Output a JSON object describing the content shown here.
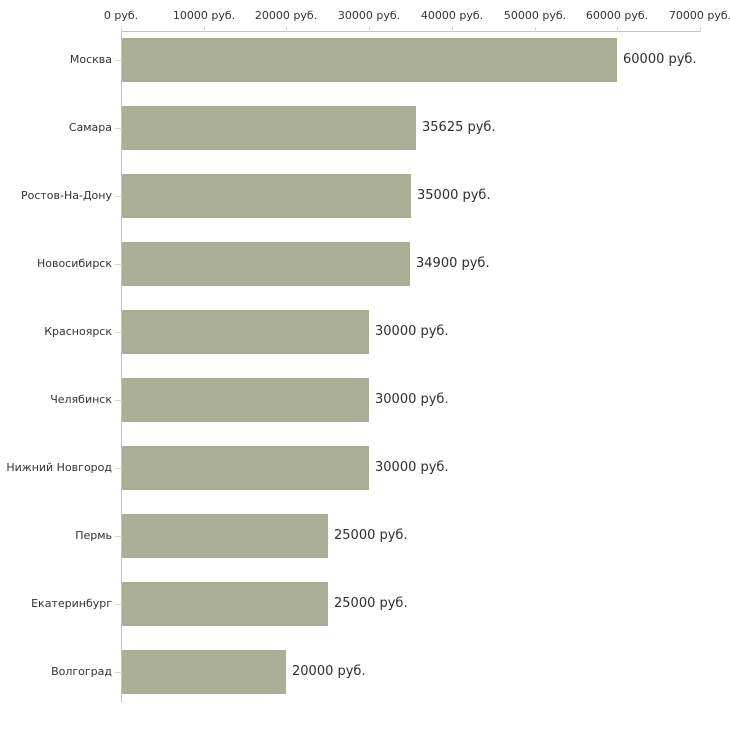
{
  "chart_data": {
    "type": "bar",
    "orientation": "horizontal",
    "unit": "руб.",
    "categories": [
      "Москва",
      "Самара",
      "Ростов-На-Дону",
      "Новосибирск",
      "Красноярск",
      "Челябинск",
      "Нижний Новгород",
      "Пермь",
      "Екатеринбург",
      "Волгоград"
    ],
    "values": [
      60000,
      35625,
      35000,
      34900,
      30000,
      30000,
      30000,
      25000,
      25000,
      20000
    ],
    "value_labels": [
      "60000 руб.",
      "35625 руб.",
      "35000 руб.",
      "34900 руб.",
      "30000 руб.",
      "30000 руб.",
      "30000 руб.",
      "25000 руб.",
      "25000 руб.",
      "20000 руб."
    ],
    "x_axis": {
      "position": "top",
      "min": 0,
      "max": 70000,
      "ticks": [
        0,
        10000,
        20000,
        30000,
        40000,
        50000,
        60000,
        70000
      ],
      "tick_labels": [
        "0 руб.",
        "10000 руб.",
        "20000 руб.",
        "30000 руб.",
        "40000 руб.",
        "50000 руб.",
        "60000 руб.",
        "70000 руб."
      ]
    },
    "grid": false,
    "legend": false,
    "colors": {
      "bar": "#a9ae94",
      "axis_line": "#c3c3c3",
      "tick": "#d8d9c5",
      "text": "#333333",
      "background": "#ffffff"
    }
  }
}
